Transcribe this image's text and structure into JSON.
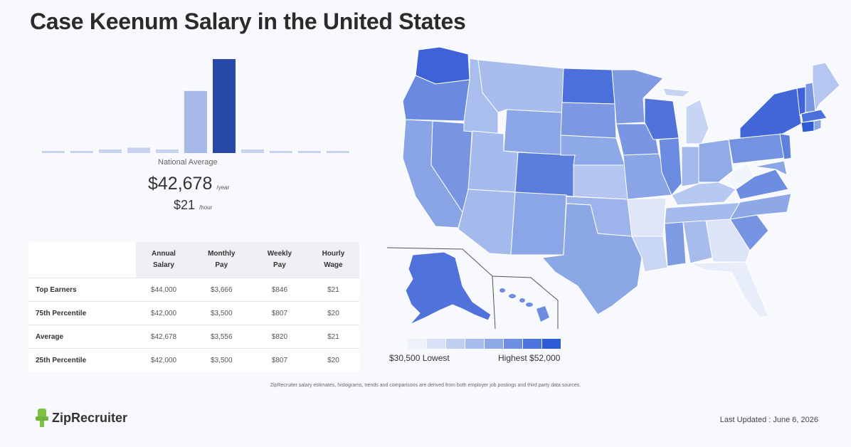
{
  "title": "Case Keenum Salary in the United States",
  "histogram": {
    "bar_values": [
      1,
      1,
      2,
      3,
      2,
      35,
      53,
      2,
      1,
      1,
      1
    ],
    "highlight_index": 6,
    "colors": {
      "base": "#c7d2ee",
      "mid": "#a6b9e8",
      "highlight": "#2848a8"
    }
  },
  "national": {
    "label": "National Average",
    "annual": "$42,678",
    "annual_unit": "/year",
    "hourly": "$21",
    "hourly_unit": "/hour"
  },
  "table": {
    "headers": [
      [
        "Annual",
        "Salary"
      ],
      [
        "Monthly",
        "Pay"
      ],
      [
        "Weekly",
        "Pay"
      ],
      [
        "Hourly",
        "Wage"
      ]
    ],
    "rows": [
      {
        "label": "Top Earners",
        "values": [
          "$44,000",
          "$3,666",
          "$846",
          "$21"
        ]
      },
      {
        "label": "75th Percentile",
        "values": [
          "$42,000",
          "$3,500",
          "$807",
          "$20"
        ]
      },
      {
        "label": "Average",
        "values": [
          "$42,678",
          "$3,556",
          "$820",
          "$21"
        ]
      },
      {
        "label": "25th Percentile",
        "values": [
          "$42,000",
          "$3,500",
          "$807",
          "$20"
        ]
      }
    ]
  },
  "legend": {
    "low": "$30,500 Lowest",
    "high": "Highest $52,000",
    "colors": [
      "#eef1fa",
      "#d8e1f6",
      "#c0cff1",
      "#a7bcec",
      "#8ea9e8",
      "#6f8fe2",
      "#4d73dc",
      "#2f5bd6"
    ]
  },
  "footnote": "ZipRecruiter salary estimates, histograms, trends and comparisons are derived from both employer job postings and third party data sources.",
  "brand": "ZipRecruiter",
  "updated": "Last Updated : June 6, 2026"
}
